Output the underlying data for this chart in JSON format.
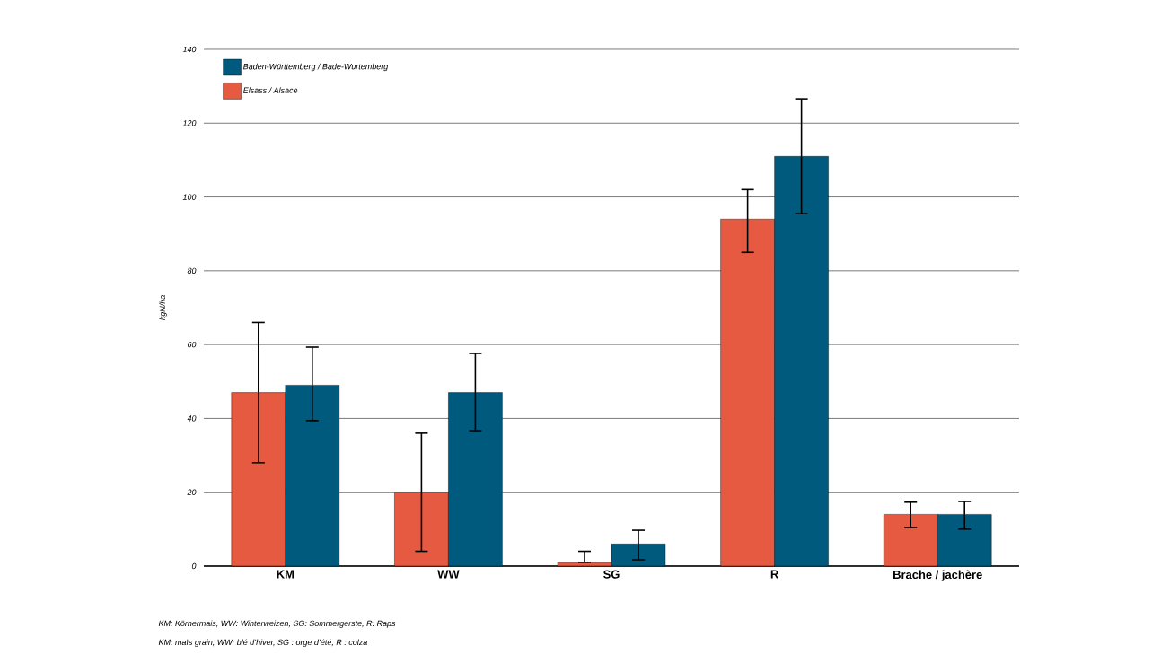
{
  "chart_data": {
    "type": "bar",
    "categories": [
      "KM",
      "WW",
      "SG",
      "R",
      "Brache / jachère"
    ],
    "ylabel": "kgN/ha",
    "ylim": [
      0,
      140
    ],
    "yticks": [
      0,
      20,
      40,
      60,
      80,
      100,
      120,
      140
    ],
    "grid": "y",
    "legend": "top left",
    "series": [
      {
        "name": "Elsass / Alsace",
        "color": "#e55a40",
        "values": [
          47,
          20,
          1,
          94,
          14
        ],
        "errors": [
          [
            28,
            66
          ],
          [
            4,
            36
          ],
          [
            1,
            4
          ],
          [
            85,
            102
          ],
          [
            10.5,
            17.3
          ]
        ]
      },
      {
        "name": "Baden-Württemberg / Bade-Wurtemberg",
        "color": "#005a7e",
        "values": [
          49,
          47,
          6,
          111,
          14
        ],
        "errors": [
          [
            39.4,
            59.3
          ],
          [
            36.7,
            57.6
          ],
          [
            1.7,
            9.7
          ],
          [
            95.5,
            126.6
          ],
          [
            10,
            17.5
          ]
        ]
      }
    ],
    "annotations": [
      "KM: Körnermais, WW: Winterweizen, SG: Sommergerste, R: Raps",
      "KM: maïs grain, WW: blé d’hiver, SG : orge d’été, R : colza"
    ]
  }
}
